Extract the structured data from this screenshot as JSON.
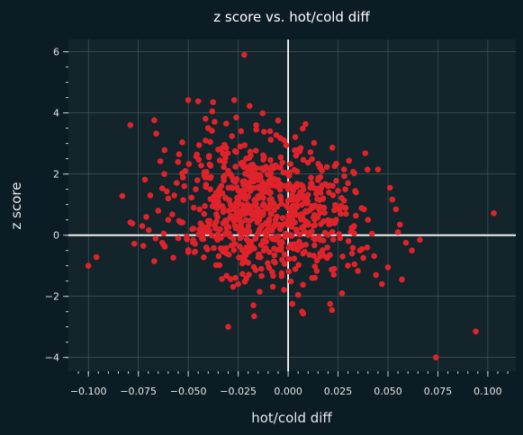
{
  "chart_data": {
    "type": "scatter",
    "title": "z score vs. hot/cold diff",
    "xlabel": "hot/cold diff",
    "ylabel": "z score",
    "xlim": [
      -0.11,
      0.114
    ],
    "ylim": [
      -4.45,
      6.4
    ],
    "xticks": [
      -0.1,
      -0.075,
      -0.05,
      -0.025,
      0.0,
      0.025,
      0.05,
      0.075,
      0.1
    ],
    "xtick_labels": [
      "−0.100",
      "−0.075",
      "−0.050",
      "−0.025",
      "0.000",
      "0.025",
      "0.050",
      "0.075",
      "0.100"
    ],
    "yticks": [
      -4,
      -2,
      0,
      2,
      4,
      6
    ],
    "ytick_labels": [
      "−4",
      "−2",
      "0",
      "2",
      "4",
      "6"
    ],
    "grid": true,
    "reference_lines": {
      "x": 0,
      "y": 0
    },
    "colors": {
      "background": "#0c1c24",
      "plot_background": "#13242b",
      "points": "#e0232a",
      "reference_lines": "#ffffff"
    },
    "series": [
      {
        "points": [
          [
            -0.1,
            -1.0
          ],
          [
            -0.096,
            -0.72
          ],
          [
            -0.083,
            1.28
          ],
          [
            -0.079,
            3.6
          ],
          [
            -0.079,
            0.42
          ],
          [
            -0.078,
            0.38
          ],
          [
            -0.077,
            -0.28
          ],
          [
            -0.073,
            0.3
          ],
          [
            -0.071,
            0.6
          ],
          [
            -0.069,
            1.3
          ],
          [
            -0.067,
            3.76
          ],
          [
            -0.067,
            -0.85
          ],
          [
            -0.066,
            3.32
          ],
          [
            -0.065,
            0.8
          ],
          [
            -0.064,
            2.42
          ],
          [
            -0.063,
            1.53
          ],
          [
            -0.063,
            -0.25
          ],
          [
            -0.062,
            2.0
          ],
          [
            -0.06,
            1.2
          ],
          [
            -0.06,
            0.5
          ],
          [
            -0.058,
            0.68
          ],
          [
            -0.057,
            1.3
          ],
          [
            -0.055,
            -0.1
          ],
          [
            -0.053,
            3.04
          ],
          [
            -0.052,
            1.6
          ],
          [
            -0.05,
            4.42
          ],
          [
            -0.05,
            -0.55
          ],
          [
            -0.048,
            0.2
          ],
          [
            -0.046,
            2.58
          ],
          [
            -0.045,
            4.38
          ],
          [
            -0.044,
            0.0
          ],
          [
            -0.042,
            1.95
          ],
          [
            -0.041,
            -0.4
          ],
          [
            -0.04,
            3.5
          ],
          [
            -0.039,
            3.05
          ],
          [
            -0.038,
            4.05
          ],
          [
            -0.036,
            0.9
          ],
          [
            -0.035,
            2.8
          ],
          [
            -0.034,
            1.55
          ],
          [
            -0.033,
            -0.5
          ],
          [
            -0.031,
            3.65
          ],
          [
            -0.03,
            2.1
          ],
          [
            -0.03,
            -3.0
          ],
          [
            -0.028,
            0.6
          ],
          [
            -0.027,
            4.42
          ],
          [
            -0.026,
            3.85
          ],
          [
            -0.025,
            -1.6
          ],
          [
            -0.024,
            2.9
          ],
          [
            -0.023,
            1.0
          ],
          [
            -0.022,
            5.9
          ],
          [
            -0.021,
            2.5
          ],
          [
            -0.02,
            -0.9
          ],
          [
            -0.018,
            0.7
          ],
          [
            -0.017,
            -2.65
          ],
          [
            -0.016,
            3.6
          ],
          [
            -0.015,
            1.85
          ],
          [
            -0.013,
            -0.3
          ],
          [
            -0.012,
            2.55
          ],
          [
            -0.011,
            0.4
          ],
          [
            -0.009,
            3.4
          ],
          [
            -0.008,
            -1.2
          ],
          [
            -0.006,
            1.6
          ],
          [
            -0.005,
            3.75
          ],
          [
            -0.004,
            0.2
          ],
          [
            -0.003,
            -0.8
          ],
          [
            -0.002,
            3.1
          ],
          [
            0.0,
            1.5
          ],
          [
            0.002,
            0.6
          ],
          [
            0.004,
            2.6
          ],
          [
            0.005,
            -1.95
          ],
          [
            0.007,
            -2.5
          ],
          [
            0.008,
            1.2
          ],
          [
            0.01,
            0.4
          ],
          [
            0.012,
            -1.4
          ],
          [
            0.013,
            3.02
          ],
          [
            0.015,
            1.8
          ],
          [
            0.016,
            -0.7
          ],
          [
            0.018,
            0.9
          ],
          [
            0.02,
            1.6
          ],
          [
            0.021,
            -2.25
          ],
          [
            0.022,
            -2.45
          ],
          [
            0.024,
            0.5
          ],
          [
            0.025,
            1.45
          ],
          [
            0.026,
            -0.1
          ],
          [
            0.027,
            -1.9
          ],
          [
            0.028,
            2.15
          ],
          [
            0.029,
            0.7
          ],
          [
            0.03,
            1.7
          ],
          [
            0.032,
            -0.6
          ],
          [
            0.033,
            0.3
          ],
          [
            0.034,
            1.4
          ],
          [
            0.036,
            -0.5
          ],
          [
            0.038,
            0.85
          ],
          [
            0.04,
            0.5
          ],
          [
            0.042,
            0.05
          ],
          [
            0.044,
            -1.3
          ],
          [
            0.045,
            2.15
          ],
          [
            0.047,
            -1.6
          ],
          [
            0.05,
            -1.05
          ],
          [
            0.051,
            1.55
          ],
          [
            0.054,
            0.85
          ],
          [
            0.055,
            0.1
          ],
          [
            0.056,
            0.35
          ],
          [
            0.057,
            -1.45
          ],
          [
            0.059,
            -0.25
          ],
          [
            0.062,
            -0.5
          ],
          [
            0.066,
            -0.15
          ],
          [
            0.074,
            -4.0
          ],
          [
            0.094,
            -3.15
          ],
          [
            0.103,
            0.72
          ]
        ]
      }
    ],
    "density_clusters": [
      {
        "cx": -0.012,
        "cy": 0.8,
        "sx": 0.02,
        "sy": 1.1,
        "n": 540
      },
      {
        "cx": -0.03,
        "cy": 1.6,
        "sx": 0.014,
        "sy": 1.0,
        "n": 70
      },
      {
        "cx": 0.015,
        "cy": 0.2,
        "sx": 0.013,
        "sy": 1.0,
        "n": 90
      }
    ]
  }
}
